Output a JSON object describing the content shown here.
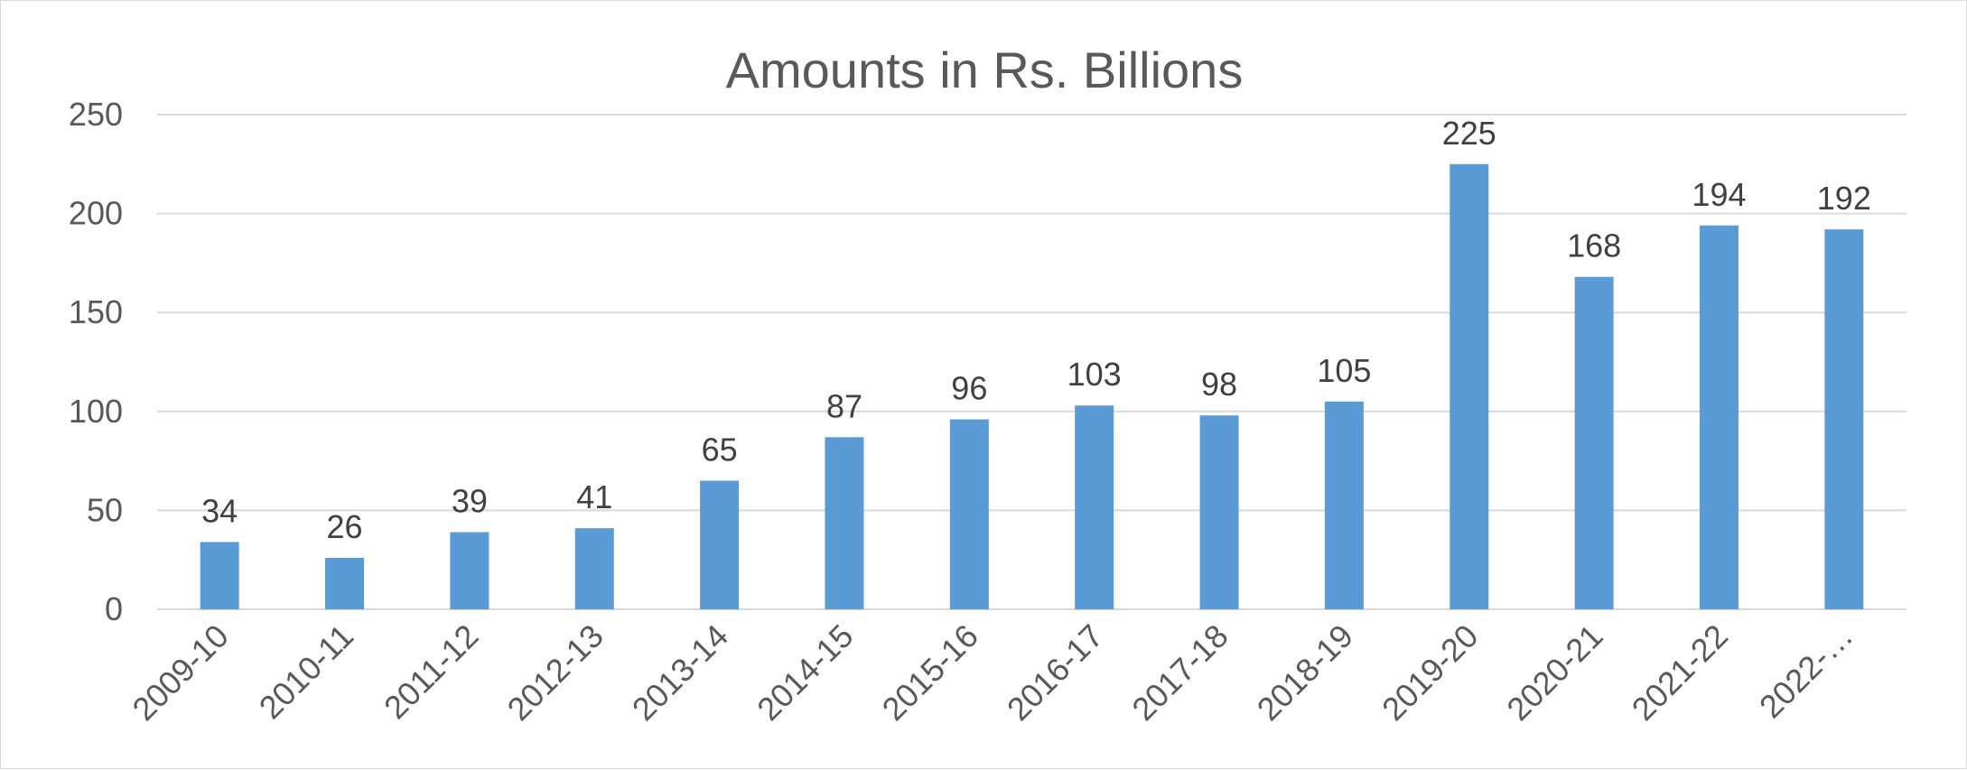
{
  "chart_data": {
    "type": "bar",
    "title": "Amounts in Rs. Billions",
    "categories": [
      "2009-10",
      "2010-11",
      "2011-12",
      "2012-13",
      "2013-14",
      "2014-15",
      "2015-16",
      "2016-17",
      "2017-18",
      "2018-19",
      "2019-20",
      "2020-21",
      "2021-22",
      "2022-…"
    ],
    "values": [
      34,
      26,
      39,
      41,
      65,
      87,
      96,
      103,
      98,
      105,
      225,
      168,
      194,
      192
    ],
    "ylim": [
      0,
      250
    ],
    "yticks": [
      "0",
      "50",
      "100",
      "150",
      "200",
      "250"
    ],
    "xlabel": "",
    "ylabel": "",
    "grid": true,
    "legend": "none",
    "bar_color": "#5b9bd5",
    "gridline_color": "#d9d9d9",
    "text_color": "#595959"
  }
}
